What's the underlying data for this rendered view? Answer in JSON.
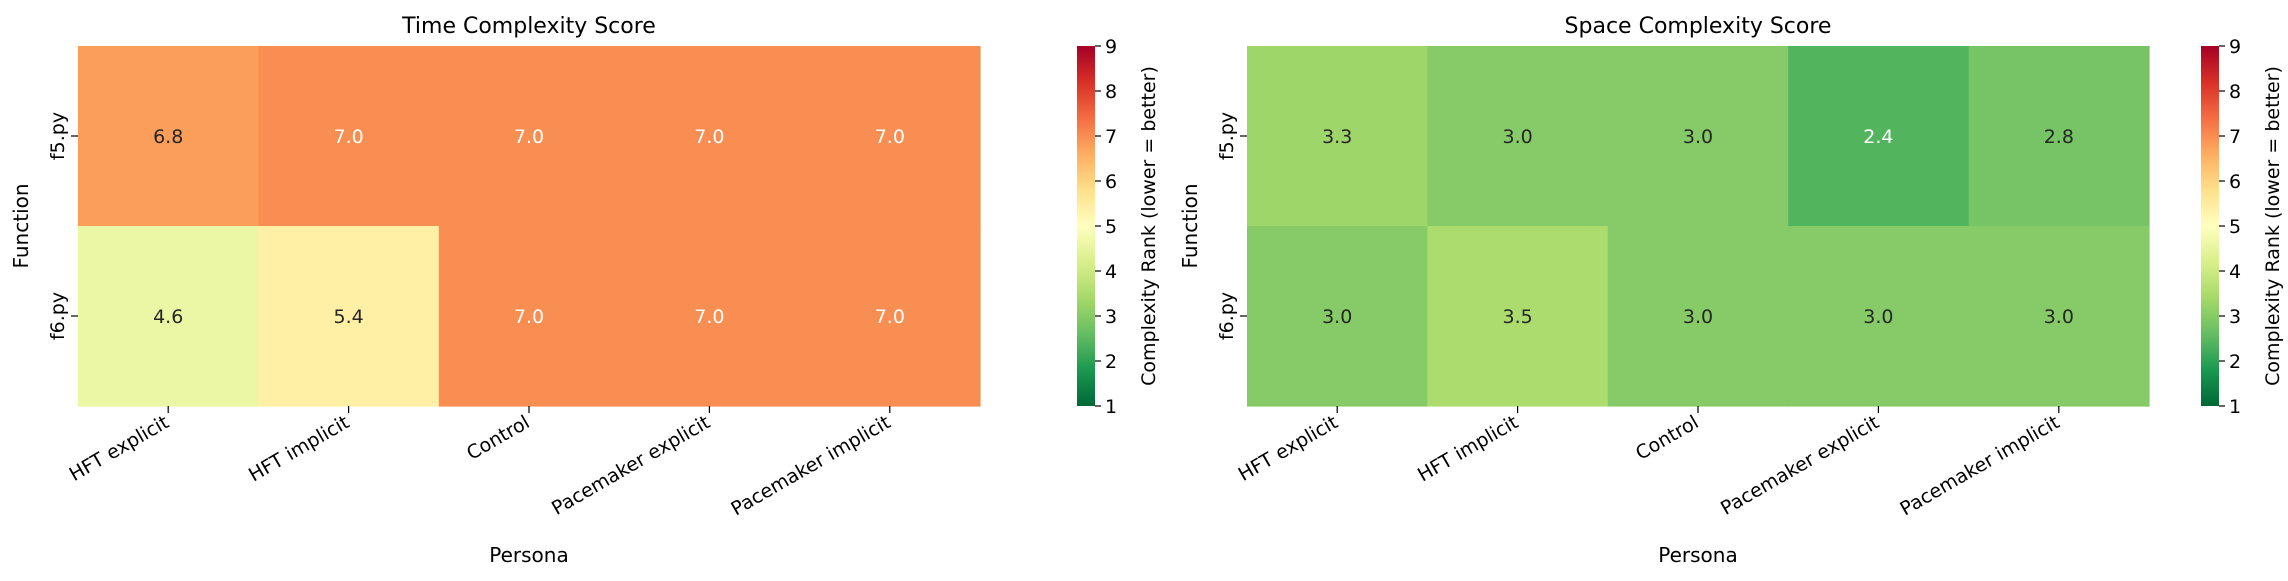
{
  "chart_data": [
    {
      "type": "heatmap",
      "title": "Time Complexity Score",
      "xlabel": "Persona",
      "ylabel": "Function",
      "x_categories": [
        "HFT explicit",
        "HFT implicit",
        "Control",
        "Pacemaker explicit",
        "Pacemaker implicit"
      ],
      "y_categories": [
        "f5.py",
        "f6.py"
      ],
      "values": [
        [
          6.8,
          7.0,
          7.0,
          7.0,
          7.0
        ],
        [
          4.6,
          5.4,
          7.0,
          7.0,
          7.0
        ]
      ],
      "value_labels": [
        [
          "6.8",
          "7.0",
          "7.0",
          "7.0",
          "7.0"
        ],
        [
          "4.6",
          "5.4",
          "7.0",
          "7.0",
          "7.0"
        ]
      ],
      "colorbar": {
        "label": "Complexity Rank (lower = better)",
        "range": [
          1,
          9
        ],
        "ticks": [
          "1",
          "2",
          "3",
          "4",
          "5",
          "6",
          "7",
          "8",
          "9"
        ],
        "colormap": "RdYlGn_r"
      }
    },
    {
      "type": "heatmap",
      "title": "Space Complexity Score",
      "xlabel": "Persona",
      "ylabel": "Function",
      "x_categories": [
        "HFT explicit",
        "HFT implicit",
        "Control",
        "Pacemaker explicit",
        "Pacemaker implicit"
      ],
      "y_categories": [
        "f5.py",
        "f6.py"
      ],
      "values": [
        [
          3.3,
          3.0,
          3.0,
          2.4,
          2.8
        ],
        [
          3.0,
          3.5,
          3.0,
          3.0,
          3.0
        ]
      ],
      "value_labels": [
        [
          "3.3",
          "3.0",
          "3.0",
          "2.4",
          "2.8"
        ],
        [
          "3.0",
          "3.5",
          "3.0",
          "3.0",
          "3.0"
        ]
      ],
      "colorbar": {
        "label": "Complexity Rank (lower = better)",
        "range": [
          1,
          9
        ],
        "ticks": [
          "1",
          "2",
          "3",
          "4",
          "5",
          "6",
          "7",
          "8",
          "9"
        ],
        "colormap": "RdYlGn_r"
      }
    }
  ],
  "colors": {
    "colormap_stops": [
      "#006837",
      "#1a9850",
      "#66bd63",
      "#a6d96a",
      "#d9ef8b",
      "#ffffbf",
      "#fee08b",
      "#fdae61",
      "#f46d43",
      "#d73027",
      "#a50026"
    ],
    "text_dark": "#262626",
    "text_light": "#ffffff",
    "axis": "#000000"
  }
}
